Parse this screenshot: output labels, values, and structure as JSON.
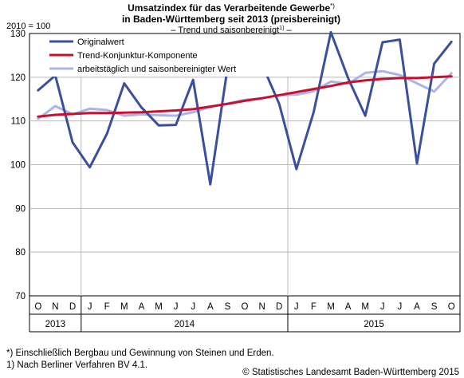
{
  "header": {
    "title_line1": "Umsatzindex für das Verarbeitende Gewerbe",
    "title_line1_sup": "*)",
    "title_line2": "in Baden-Württemberg seit 2013 (preisbereinigt)",
    "subtitle": "– Trend und saisonbereinigt",
    "subtitle_sup": "1)",
    "subtitle_end": " –"
  },
  "footnotes": {
    "note1": "*) Einschließlich Bergbau und Gewinnung von Steinen und Erden.",
    "note2": "1) Nach Berliner Verfahren BV 4.1.",
    "copyright": "© Statistisches Landesamt Baden-Württemberg 2015"
  },
  "chart_data": {
    "type": "line",
    "ylabel": "2010 = 100",
    "ylim": [
      70,
      130
    ],
    "yticks": [
      70,
      80,
      90,
      100,
      110,
      120,
      130
    ],
    "grid": true,
    "legend_position": "top-left",
    "categories": [
      "O",
      "N",
      "D",
      "J",
      "F",
      "M",
      "A",
      "M",
      "J",
      "J",
      "A",
      "S",
      "O",
      "N",
      "D",
      "J",
      "F",
      "M",
      "A",
      "M",
      "J",
      "J",
      "A",
      "S",
      "O"
    ],
    "year_groups": [
      {
        "label": "2013",
        "start": 0,
        "end": 2
      },
      {
        "label": "2014",
        "start": 3,
        "end": 14
      },
      {
        "label": "2015",
        "start": 15,
        "end": 24
      }
    ],
    "series": [
      {
        "name": "Originalwert",
        "color": "#3a4f9e",
        "values": [
          117,
          120.4,
          105.1,
          99.4,
          107.1,
          118.6,
          113.1,
          109.0,
          109.1,
          119.4,
          95.5,
          122.2,
          121.8,
          123.0,
          113.9,
          99.0,
          112.0,
          130.3,
          119.8,
          111.2,
          128.0,
          128.6,
          100.3,
          123.1,
          128.1
        ]
      },
      {
        "name": "Trend-Konjunktur-Komponente",
        "color": "#c8102e",
        "values": [
          111.0,
          111.4,
          111.6,
          111.8,
          111.8,
          111.9,
          112.0,
          112.2,
          112.4,
          112.7,
          113.3,
          113.9,
          114.6,
          115.2,
          115.9,
          116.6,
          117.3,
          118.0,
          118.8,
          119.3,
          119.6,
          119.8,
          119.8,
          120.0,
          120.2
        ]
      },
      {
        "name": "arbeitstäglich und saisonbereinigter Wert",
        "color": "#a9b4e8",
        "values": [
          110.5,
          113.4,
          111.5,
          112.8,
          112.5,
          111.2,
          111.5,
          111.3,
          111.2,
          112.0,
          113.2,
          114.0,
          114.8,
          115.2,
          115.9,
          116.0,
          116.8,
          119.0,
          118.5,
          121.0,
          121.4,
          120.5,
          118.6,
          116.7,
          120.9
        ]
      }
    ]
  }
}
